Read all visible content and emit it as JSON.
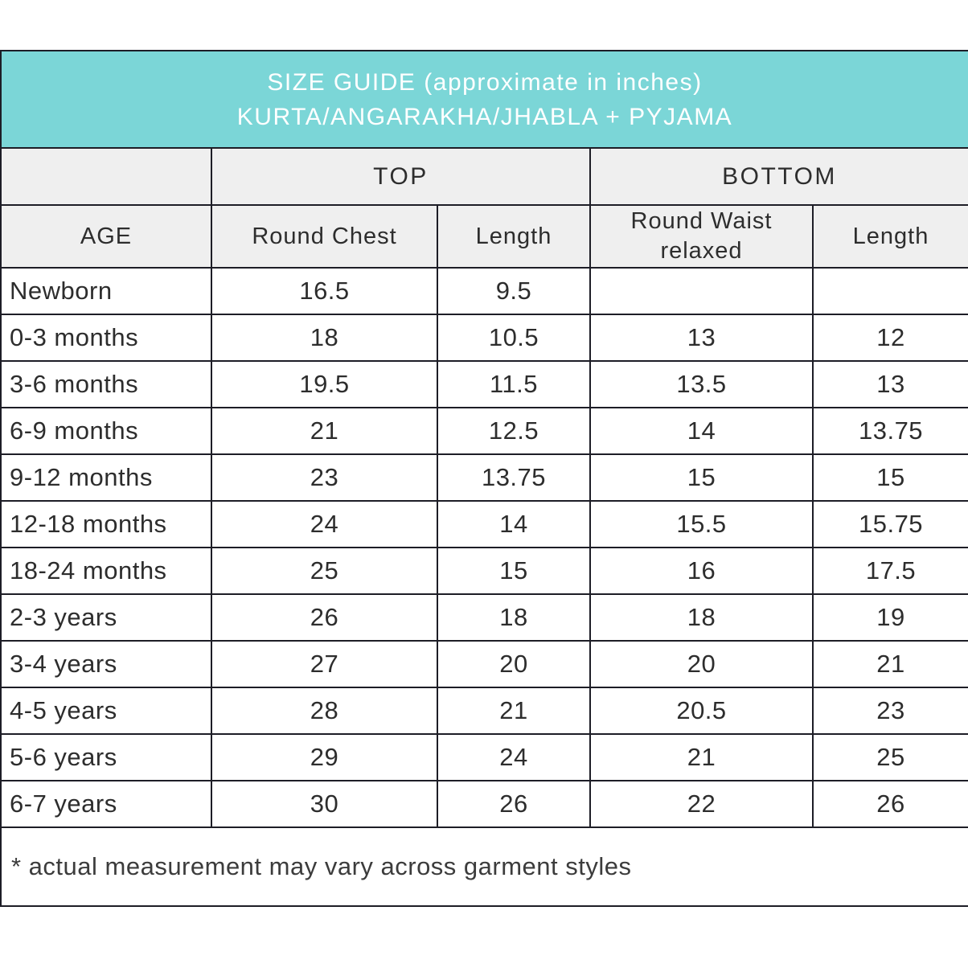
{
  "header": {
    "title_line1": "SIZE GUIDE (approximate in inches)",
    "title_line2": "KURTA/ANGARAKHA/JHABLA + PYJAMA"
  },
  "table": {
    "group_headers": {
      "top": "TOP",
      "bottom": "BOTTOM"
    },
    "column_headers": [
      "AGE",
      "Round Chest",
      "Length",
      "Round Waist relaxed",
      "Length"
    ],
    "rows": [
      {
        "age": "Newborn",
        "chest": "16.5",
        "top_length": "9.5",
        "waist": "",
        "bottom_length": ""
      },
      {
        "age": "0-3 months",
        "chest": "18",
        "top_length": "10.5",
        "waist": "13",
        "bottom_length": "12"
      },
      {
        "age": "3-6 months",
        "chest": "19.5",
        "top_length": "11.5",
        "waist": "13.5",
        "bottom_length": "13"
      },
      {
        "age": "6-9 months",
        "chest": "21",
        "top_length": "12.5",
        "waist": "14",
        "bottom_length": "13.75"
      },
      {
        "age": "9-12 months",
        "chest": "23",
        "top_length": "13.75",
        "waist": "15",
        "bottom_length": "15"
      },
      {
        "age": "12-18 months",
        "chest": "24",
        "top_length": "14",
        "waist": "15.5",
        "bottom_length": "15.75"
      },
      {
        "age": "18-24 months",
        "chest": "25",
        "top_length": "15",
        "waist": "16",
        "bottom_length": "17.5"
      },
      {
        "age": "2-3 years",
        "chest": "26",
        "top_length": "18",
        "waist": "18",
        "bottom_length": "19"
      },
      {
        "age": "3-4 years",
        "chest": "27",
        "top_length": "20",
        "waist": "20",
        "bottom_length": "21"
      },
      {
        "age": "4-5 years",
        "chest": "28",
        "top_length": "21",
        "waist": "20.5",
        "bottom_length": "23"
      },
      {
        "age": "5-6 years",
        "chest": "29",
        "top_length": "24",
        "waist": "21",
        "bottom_length": "25"
      },
      {
        "age": "6-7 years",
        "chest": "30",
        "top_length": "26",
        "waist": "22",
        "bottom_length": "26"
      }
    ],
    "footnote": "* actual measurement may vary across garment styles"
  },
  "colors": {
    "accent_teal": "#7bd6d7",
    "header_gray": "#efefef",
    "border_dark": "#1d1d26",
    "text_dark": "#2d2d2d",
    "title_text": "#ffffff"
  }
}
